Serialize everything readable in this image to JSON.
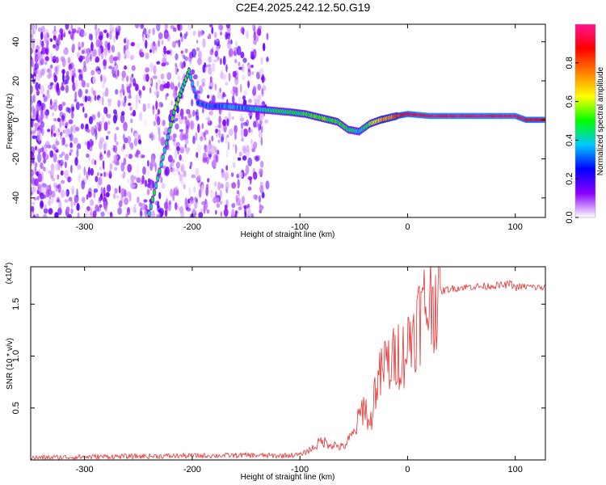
{
  "title": "C2E4.2025.242.12.50.G19",
  "chart_data": [
    {
      "type": "heatmap",
      "xlabel": "Height of straight line (km)",
      "ylabel": "Frequency (Hz)",
      "xlim": [
        -350,
        128
      ],
      "ylim": [
        -50,
        49
      ],
      "xticks": [
        -300,
        -200,
        -100,
        0,
        100
      ],
      "xtick_labels": [
        "-300",
        "-200",
        "-100",
        "0",
        "100"
      ],
      "yticks": [
        -40,
        -20,
        0,
        20,
        40
      ],
      "ytick_labels": [
        "-40",
        "-20",
        "0",
        "20",
        "40"
      ],
      "colorbar": {
        "label": "Normalized spectral amplitude",
        "range": [
          0,
          1
        ],
        "ticks": [
          0.0,
          0.2,
          0.4,
          0.6,
          0.8
        ],
        "tick_labels": [
          "0.0",
          "0.2",
          "0.4",
          "0.6",
          "0.8"
        ],
        "colors": [
          "#ffffff",
          "#8b00ff",
          "#0000ff",
          "#00c8ff",
          "#00ff00",
          "#ffff00",
          "#ff8000",
          "#ff0000",
          "#ff1493"
        ]
      },
      "noise_region_x": [
        -350,
        -130
      ],
      "ridge": [
        {
          "x": -240,
          "y": -48
        },
        {
          "x": -232,
          "y": -30
        },
        {
          "x": -224,
          "y": -12
        },
        {
          "x": -217,
          "y": 4
        },
        {
          "x": -210,
          "y": 15
        },
        {
          "x": -203,
          "y": 25
        },
        {
          "x": -195,
          "y": 9
        },
        {
          "x": -185,
          "y": 7
        },
        {
          "x": -170,
          "y": 7
        },
        {
          "x": -150,
          "y": 6
        },
        {
          "x": -130,
          "y": 5
        },
        {
          "x": -110,
          "y": 4
        },
        {
          "x": -95,
          "y": 3
        },
        {
          "x": -80,
          "y": 1
        },
        {
          "x": -65,
          "y": -1
        },
        {
          "x": -55,
          "y": -5
        },
        {
          "x": -45,
          "y": -6
        },
        {
          "x": -35,
          "y": -2
        },
        {
          "x": -25,
          "y": 0
        },
        {
          "x": -10,
          "y": 2
        },
        {
          "x": 0,
          "y": 3
        },
        {
          "x": 20,
          "y": 2
        },
        {
          "x": 50,
          "y": 2
        },
        {
          "x": 80,
          "y": 2
        },
        {
          "x": 100,
          "y": 2
        },
        {
          "x": 110,
          "y": 0
        },
        {
          "x": 128,
          "y": 0
        }
      ],
      "ridge_amplitude": [
        0.45,
        0.45,
        0.45,
        0.5,
        0.5,
        0.5,
        0.3,
        0.3,
        0.35,
        0.35,
        0.45,
        0.45,
        0.5,
        0.55,
        0.5,
        0.45,
        0.4,
        0.55,
        0.7,
        0.8,
        0.9,
        0.95,
        0.95,
        0.95,
        0.95,
        0.9,
        0.9
      ]
    },
    {
      "type": "line",
      "xlabel": "Height of straight line (km)",
      "ylabel": "SNR (10 * v/v)",
      "scale_label": "(x10",
      "scale_exponent": "4",
      "scale_suffix": ")",
      "xlim": [
        -350,
        128
      ],
      "ylim": [
        0,
        18600
      ],
      "xticks": [
        -300,
        -200,
        -100,
        0,
        100
      ],
      "xtick_labels": [
        "-300",
        "-200",
        "-100",
        "0",
        "100"
      ],
      "yticks": [
        5000,
        10000,
        15000
      ],
      "ytick_labels": [
        "0.5",
        "1.0",
        "1.5"
      ],
      "color": "#e83030",
      "series": [
        {
          "x": [
            -350,
            -300,
            -250,
            -200,
            -150,
            -120,
            -100,
            -90,
            -80,
            -70,
            -60,
            -50,
            -45,
            -40,
            -35,
            -30,
            -25,
            -20,
            -15,
            -10,
            -5,
            0,
            5,
            10,
            15,
            20,
            25,
            30,
            40,
            50,
            60,
            70,
            80,
            90,
            95,
            100,
            110,
            120,
            128
          ],
          "values": [
            200,
            300,
            350,
            400,
            450,
            400,
            500,
            1000,
            1800,
            1500,
            1200,
            2500,
            4000,
            5500,
            3000,
            7000,
            8000,
            9500,
            9000,
            10500,
            10000,
            11000,
            12500,
            13500,
            14500,
            15200,
            15800,
            16200,
            16500,
            16600,
            16700,
            16700,
            16800,
            16800,
            17000,
            16600,
            16700,
            16600,
            16600
          ]
        }
      ]
    }
  ]
}
